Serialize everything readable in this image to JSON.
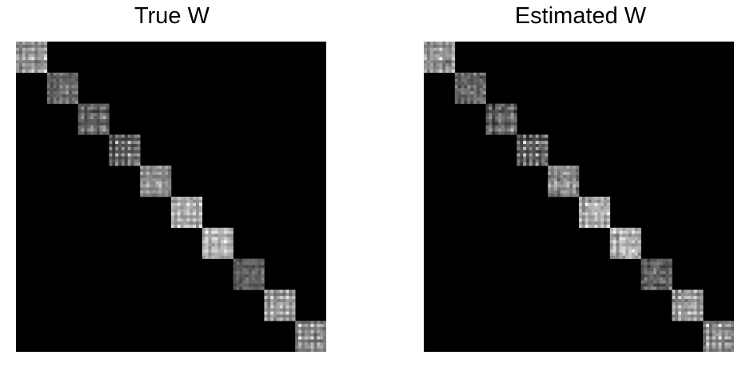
{
  "figure": {
    "panels": [
      {
        "title": "True W"
      },
      {
        "title": "Estimated W"
      }
    ]
  },
  "chart_data": [
    {
      "type": "heatmap",
      "title": "True W",
      "colormap": "gray",
      "background": "#000000",
      "matrix_size": 100,
      "block_size": 10,
      "num_blocks": 10,
      "structure": "block-diagonal",
      "block_intensity_patterns": [
        [
          0.7,
          0.55,
          0.8,
          0.6,
          0.75,
          0.95,
          0.55,
          0.7,
          0.65,
          0.9
        ],
        [
          0.55,
          0.4,
          0.5,
          0.45,
          0.6,
          0.5,
          0.7,
          0.45,
          0.55,
          0.6
        ],
        [
          0.45,
          0.6,
          0.35,
          0.55,
          0.7,
          0.5,
          0.4,
          0.6,
          0.8,
          0.45
        ],
        [
          0.6,
          0.3,
          0.85,
          0.4,
          0.7,
          0.35,
          0.9,
          0.45,
          0.55,
          0.65
        ],
        [
          0.7,
          0.6,
          0.8,
          0.55,
          0.65,
          0.75,
          0.85,
          0.6,
          0.7,
          0.55
        ],
        [
          0.8,
          0.65,
          0.95,
          0.7,
          0.75,
          0.9,
          0.7,
          0.85,
          0.65,
          0.9
        ],
        [
          0.75,
          0.95,
          0.65,
          0.85,
          0.9,
          0.7,
          0.8,
          0.95,
          0.75,
          0.7
        ],
        [
          0.45,
          0.55,
          0.4,
          0.5,
          0.6,
          0.45,
          0.55,
          0.5,
          0.4,
          0.6
        ],
        [
          0.8,
          0.55,
          0.9,
          0.6,
          0.7,
          0.85,
          0.65,
          0.95,
          0.6,
          0.75
        ],
        [
          0.5,
          0.9,
          0.55,
          0.75,
          0.6,
          0.95,
          0.5,
          0.8,
          0.7,
          0.55
        ]
      ],
      "noise": 0.0
    },
    {
      "type": "heatmap",
      "title": "Estimated W",
      "colormap": "gray",
      "background": "#000000",
      "matrix_size": 100,
      "block_size": 10,
      "num_blocks": 10,
      "structure": "block-diagonal",
      "block_intensity_patterns": [
        [
          0.7,
          0.55,
          0.8,
          0.6,
          0.75,
          0.95,
          0.55,
          0.7,
          0.65,
          0.9
        ],
        [
          0.55,
          0.4,
          0.5,
          0.45,
          0.6,
          0.5,
          0.7,
          0.45,
          0.55,
          0.6
        ],
        [
          0.45,
          0.6,
          0.35,
          0.55,
          0.7,
          0.5,
          0.4,
          0.6,
          0.8,
          0.45
        ],
        [
          0.6,
          0.3,
          0.85,
          0.4,
          0.7,
          0.35,
          0.9,
          0.45,
          0.55,
          0.65
        ],
        [
          0.7,
          0.6,
          0.8,
          0.55,
          0.65,
          0.75,
          0.85,
          0.6,
          0.7,
          0.55
        ],
        [
          0.8,
          0.65,
          0.95,
          0.7,
          0.75,
          0.9,
          0.7,
          0.85,
          0.65,
          0.9
        ],
        [
          0.75,
          0.95,
          0.65,
          0.85,
          0.9,
          0.7,
          0.8,
          0.95,
          0.75,
          0.7
        ],
        [
          0.45,
          0.55,
          0.4,
          0.5,
          0.6,
          0.45,
          0.55,
          0.5,
          0.4,
          0.6
        ],
        [
          0.8,
          0.55,
          0.9,
          0.6,
          0.7,
          0.85,
          0.65,
          0.95,
          0.6,
          0.75
        ],
        [
          0.5,
          0.9,
          0.55,
          0.75,
          0.6,
          0.95,
          0.5,
          0.8,
          0.7,
          0.55
        ]
      ],
      "noise": 0.08
    }
  ]
}
